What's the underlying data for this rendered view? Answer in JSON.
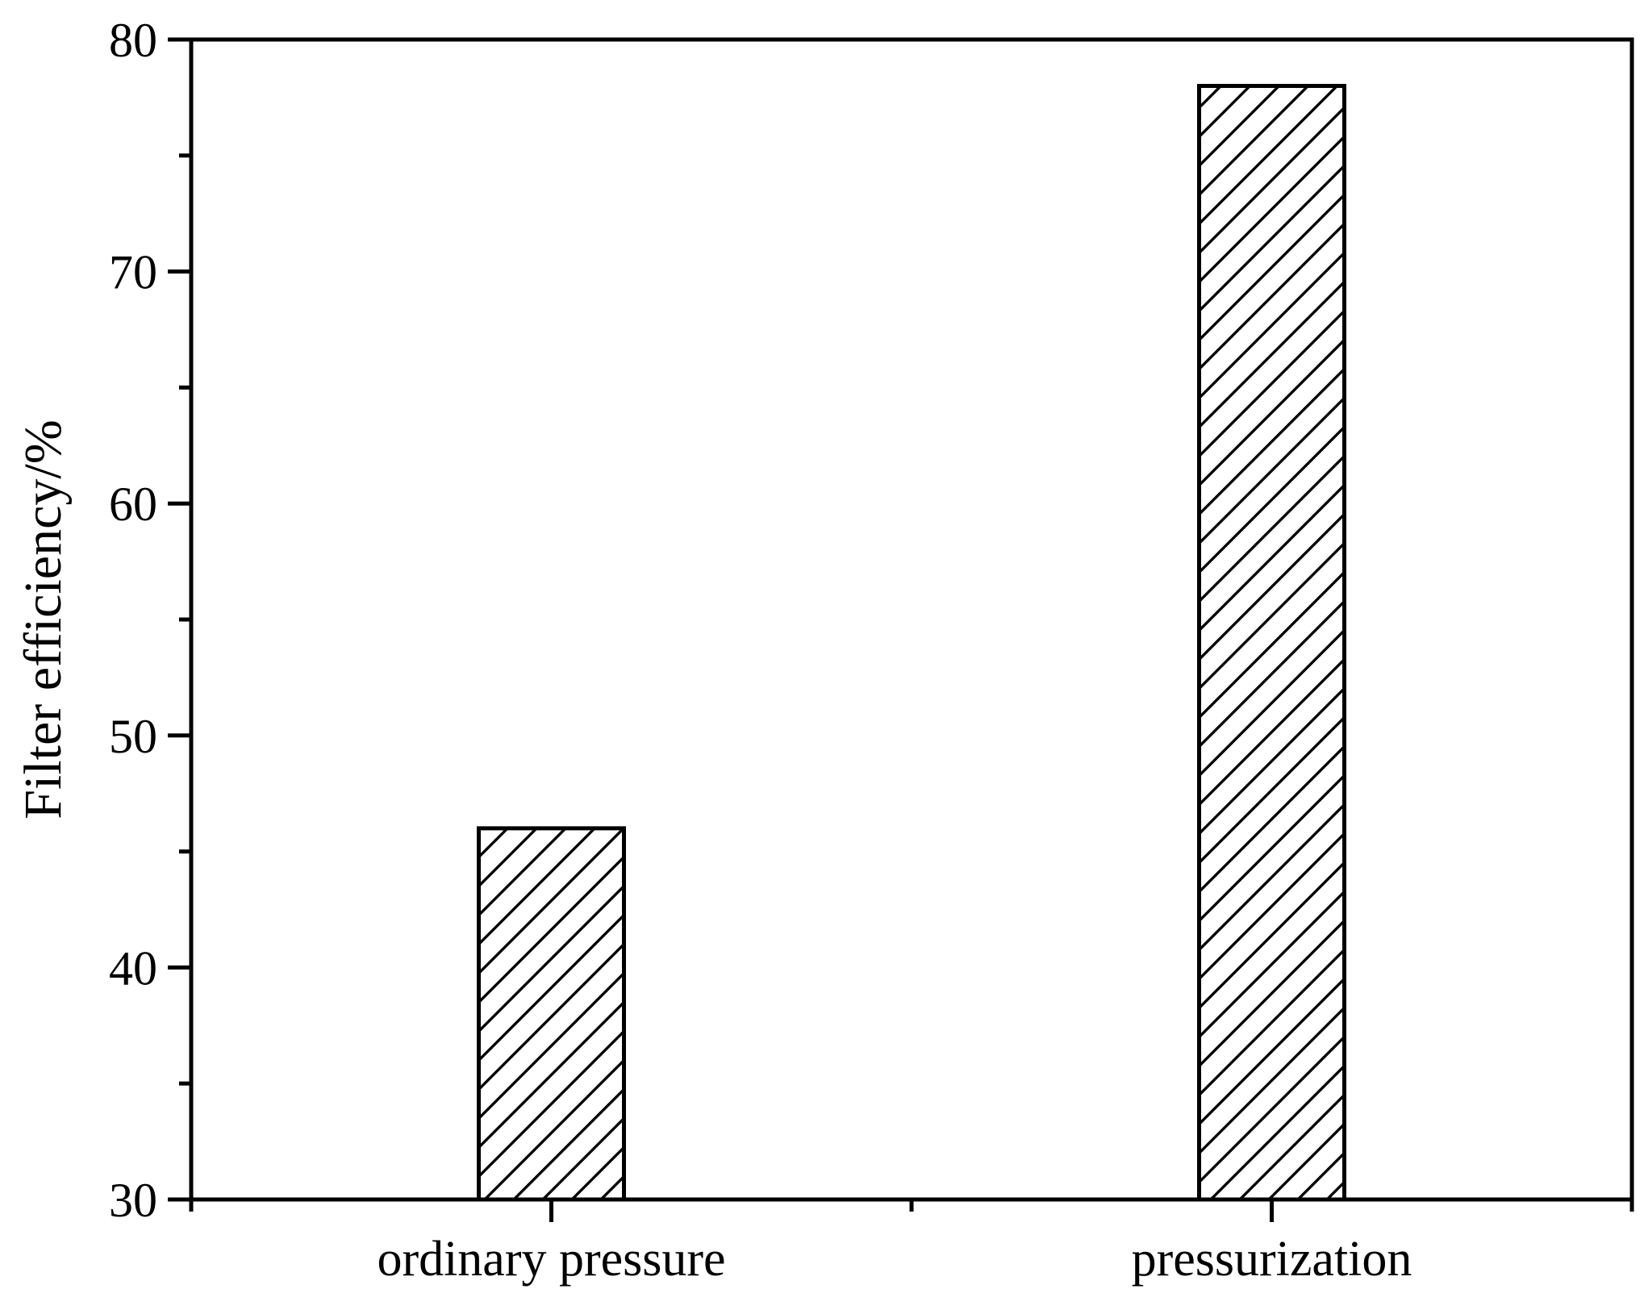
{
  "chart_data": {
    "type": "bar",
    "title": "",
    "categories": [
      "ordinary pressure",
      "pressurization"
    ],
    "values": [
      46,
      78
    ],
    "xlabel": "",
    "ylabel": "Filter efficiency/%",
    "ylim": [
      30,
      80
    ],
    "yticks": [
      30,
      40,
      50,
      60,
      70,
      80
    ],
    "ytick_major_step": 10,
    "ytick_minor_step": 5,
    "grid": false,
    "legend_position": "none",
    "bar_fill_style": "diagonal-hatch",
    "bar_hatch_direction": "forward-slash",
    "stroke_color": "#000000",
    "background_color": "#ffffff"
  }
}
